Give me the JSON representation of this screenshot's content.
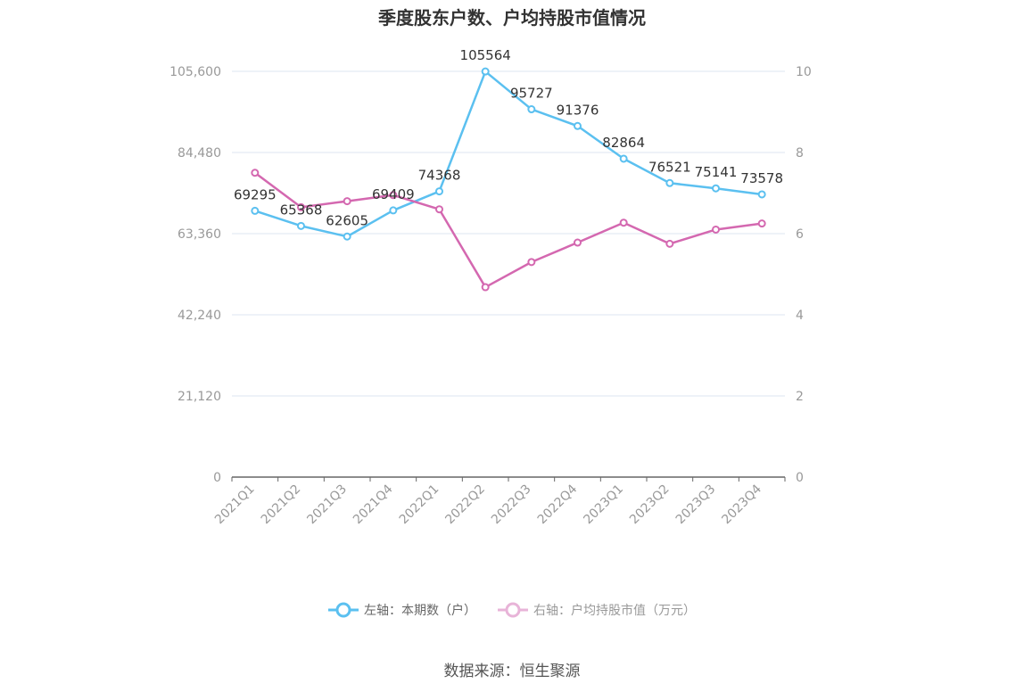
{
  "chart_data": {
    "type": "line",
    "title": "季度股东户数、户均持股市值情况",
    "categories": [
      "2021Q1",
      "2021Q2",
      "2021Q3",
      "2021Q4",
      "2022Q1",
      "2022Q2",
      "2022Q3",
      "2022Q4",
      "2023Q1",
      "2023Q2",
      "2023Q3",
      "2023Q4"
    ],
    "y_left": {
      "ticks": [
        "0",
        "21,120",
        "42,240",
        "63,360",
        "84,480",
        "105,600"
      ],
      "ylim": [
        0,
        105600
      ]
    },
    "y_right": {
      "ticks": [
        "0",
        "2",
        "4",
        "6",
        "8",
        "10"
      ],
      "ylim": [
        0,
        10
      ]
    },
    "grid": true,
    "legend_position": "bottom",
    "series": [
      {
        "name": "左轴：本期数（户）",
        "axis": "left",
        "color": "#5bc0f0",
        "values": [
          69295,
          65368,
          62605,
          69409,
          74368,
          105564,
          95727,
          91376,
          82864,
          76521,
          75141,
          73578
        ],
        "labels": [
          "69295",
          "65368",
          "62605",
          "69409",
          "74368",
          "105564",
          "95727",
          "91376",
          "82864",
          "76521",
          "75141",
          "73578"
        ]
      },
      {
        "name": "右轴：户均持股市值（万元）",
        "axis": "right",
        "color": "#d468b0",
        "values": [
          7.5,
          6.65,
          6.8,
          6.95,
          6.6,
          4.68,
          5.3,
          5.78,
          6.27,
          5.75,
          6.1,
          6.25
        ]
      }
    ]
  },
  "source_text": "数据来源：恒生聚源"
}
